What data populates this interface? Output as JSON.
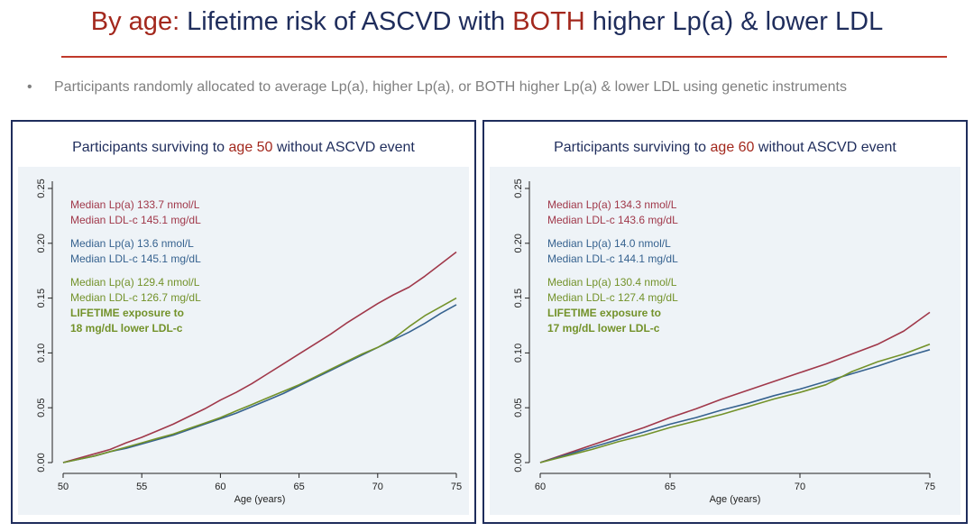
{
  "header": {
    "title_red": "By age:",
    "title_mid": " Lifetime risk of ASCVD with ",
    "title_red2": "BOTH",
    "title_end": " higher Lp(a) & lower LDL"
  },
  "bullet": {
    "symbol": "•",
    "text": "Participants randomly allocated to average Lp(a), higher Lp(a), or BOTH higher Lp(a) & lower LDL using genetic instruments"
  },
  "colors": {
    "red": "#a0384a",
    "blue": "#36628f",
    "green": "#73922a",
    "axis": "#222222"
  },
  "panels": [
    {
      "title_pre": "Participants surviving to ",
      "title_red": "age 50",
      "title_post": " without ASCVD event",
      "annotations": [
        {
          "text": "Median Lp(a) 133.7 nmol/L",
          "color": "red"
        },
        {
          "text": "Median LDL-c 145.1 mg/dL",
          "color": "red"
        },
        {
          "text": "Median Lp(a) 13.6 nmol/L",
          "color": "blue"
        },
        {
          "text": "Median LDL-c 145.1 mg/dL",
          "color": "blue"
        },
        {
          "text": "Median Lp(a) 129.4 nmol/L",
          "color": "green"
        },
        {
          "text": "Median LDL-c 126.7 mg/dL",
          "color": "green"
        },
        {
          "text": "LIFETIME exposure to",
          "color": "green",
          "bold": true
        },
        {
          "text": "18 mg/dL lower LDL-c",
          "color": "green",
          "bold": true
        }
      ]
    },
    {
      "title_pre": "Participants surviving to ",
      "title_red": "age 60",
      "title_post": " without ASCVD event",
      "annotations": [
        {
          "text": "Median Lp(a) 134.3 nmol/L",
          "color": "red"
        },
        {
          "text": "Median LDL-c 143.6 mg/dL",
          "color": "red"
        },
        {
          "text": "Median Lp(a) 14.0 nmol/L",
          "color": "blue"
        },
        {
          "text": "Median LDL-c 144.1 mg/dL",
          "color": "blue"
        },
        {
          "text": "Median Lp(a) 130.4 nmol/L",
          "color": "green"
        },
        {
          "text": "Median LDL-c 127.4 mg/dL",
          "color": "green"
        },
        {
          "text": "LIFETIME exposure to",
          "color": "green",
          "bold": true
        },
        {
          "text": "17 mg/dL lower LDL-c",
          "color": "green",
          "bold": true
        }
      ]
    }
  ],
  "chart_data": [
    {
      "type": "line",
      "xlabel": "Age (years)",
      "ylabel": "",
      "xlim": [
        50,
        75
      ],
      "ylim": [
        0,
        0.25
      ],
      "xticks": [
        50,
        55,
        60,
        65,
        70,
        75
      ],
      "yticks": [
        "0.00",
        "0.05",
        "0.10",
        "0.15",
        "0.20",
        "0.25"
      ],
      "series": [
        {
          "color": "red",
          "x": [
            50,
            51,
            52,
            53,
            54,
            55,
            56,
            57,
            58,
            59,
            60,
            61,
            62,
            63,
            64,
            65,
            66,
            67,
            68,
            69,
            70,
            71,
            72,
            73,
            74,
            75
          ],
          "values": [
            0.0,
            0.004,
            0.008,
            0.012,
            0.018,
            0.023,
            0.029,
            0.035,
            0.042,
            0.049,
            0.057,
            0.064,
            0.072,
            0.081,
            0.09,
            0.099,
            0.108,
            0.117,
            0.127,
            0.136,
            0.145,
            0.153,
            0.16,
            0.17,
            0.181,
            0.192
          ]
        },
        {
          "color": "blue",
          "x": [
            50,
            51,
            52,
            53,
            54,
            55,
            56,
            57,
            58,
            59,
            60,
            61,
            62,
            63,
            64,
            65,
            66,
            67,
            68,
            69,
            70,
            71,
            72,
            73,
            74,
            75
          ],
          "values": [
            0.0,
            0.003,
            0.006,
            0.01,
            0.013,
            0.017,
            0.021,
            0.025,
            0.03,
            0.035,
            0.04,
            0.045,
            0.051,
            0.057,
            0.063,
            0.07,
            0.077,
            0.084,
            0.091,
            0.098,
            0.105,
            0.112,
            0.119,
            0.127,
            0.136,
            0.144
          ]
        },
        {
          "color": "green",
          "x": [
            50,
            51,
            52,
            53,
            54,
            55,
            56,
            57,
            58,
            59,
            60,
            61,
            62,
            63,
            64,
            65,
            66,
            67,
            68,
            69,
            70,
            71,
            72,
            73,
            74,
            75
          ],
          "values": [
            0.0,
            0.003,
            0.006,
            0.01,
            0.014,
            0.018,
            0.022,
            0.026,
            0.031,
            0.036,
            0.041,
            0.047,
            0.053,
            0.059,
            0.065,
            0.071,
            0.078,
            0.085,
            0.092,
            0.099,
            0.105,
            0.113,
            0.124,
            0.134,
            0.142,
            0.15
          ]
        }
      ]
    },
    {
      "type": "line",
      "xlabel": "Age (years)",
      "ylabel": "",
      "xlim": [
        60,
        75
      ],
      "ylim": [
        0,
        0.25
      ],
      "xticks": [
        60,
        65,
        70,
        75
      ],
      "yticks": [
        "0.00",
        "0.05",
        "0.10",
        "0.15",
        "0.20",
        "0.25"
      ],
      "series": [
        {
          "color": "red",
          "x": [
            60,
            61,
            62,
            63,
            64,
            65,
            66,
            67,
            68,
            69,
            70,
            71,
            72,
            73,
            74,
            75
          ],
          "values": [
            0.0,
            0.008,
            0.016,
            0.024,
            0.032,
            0.041,
            0.049,
            0.058,
            0.066,
            0.074,
            0.082,
            0.09,
            0.099,
            0.108,
            0.12,
            0.137
          ]
        },
        {
          "color": "blue",
          "x": [
            60,
            61,
            62,
            63,
            64,
            65,
            66,
            67,
            68,
            69,
            70,
            71,
            72,
            73,
            74,
            75
          ],
          "values": [
            0.0,
            0.007,
            0.014,
            0.021,
            0.028,
            0.035,
            0.041,
            0.048,
            0.054,
            0.061,
            0.067,
            0.074,
            0.081,
            0.088,
            0.096,
            0.103
          ]
        },
        {
          "color": "green",
          "x": [
            60,
            61,
            62,
            63,
            64,
            65,
            66,
            67,
            68,
            69,
            70,
            71,
            72,
            73,
            74,
            75
          ],
          "values": [
            0.0,
            0.006,
            0.012,
            0.019,
            0.025,
            0.032,
            0.038,
            0.044,
            0.051,
            0.058,
            0.064,
            0.071,
            0.083,
            0.092,
            0.099,
            0.108
          ]
        }
      ]
    }
  ]
}
